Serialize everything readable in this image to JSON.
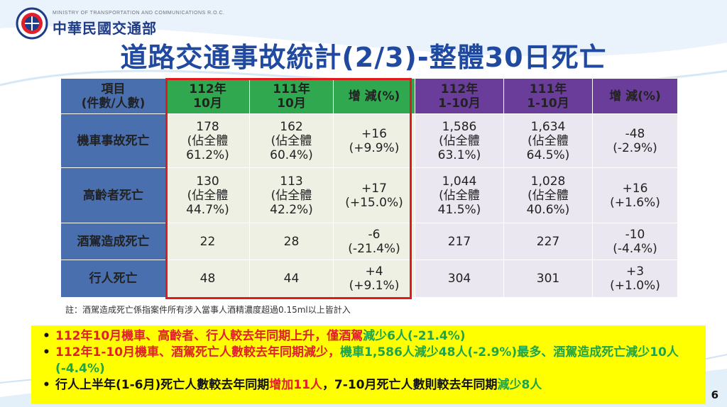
{
  "header": {
    "ministry_en": "MINISTRY OF TRANSPORTATION AND COMMUNICATIONS R.O.C.",
    "ministry_zh": "中華民國交通部",
    "title": "道路交通事故統計(2/3)-整體30日死亡"
  },
  "colors": {
    "title_blue": "#1f4aa0",
    "header_blue": "#4a6fae",
    "header_green": "#2fa84f",
    "header_purple": "#6a3d9a",
    "increase_red": "#e0212b",
    "decrease_green": "#1ea44b",
    "highlight_frame": "#e01b1b",
    "summary_bg": "#ffff00"
  },
  "table": {
    "headers": {
      "item_l1": "項目",
      "item_l2": "(件數/人數)",
      "c1_l1": "112年",
      "c1_l2": "10月",
      "c2_l1": "111年",
      "c2_l2": "10月",
      "c3": "增 減(%)",
      "c4_l1": "112年",
      "c4_l2": "1-10月",
      "c5_l1": "111年",
      "c5_l2": "1-10月",
      "c6": "增 減(%)"
    },
    "rows": [
      {
        "label": "機車事故死亡",
        "c1": {
          "n": "178",
          "l2": "(佔全體",
          "l3": "61.2%)"
        },
        "c2": {
          "n": "162",
          "l2": "(佔全體",
          "l3": "60.4%)"
        },
        "c3": {
          "a": "+16",
          "b": "(+9.9%)"
        },
        "c4": {
          "n": "1,586",
          "l2": "(佔全體",
          "l3": "63.1%)"
        },
        "c5": {
          "n": "1,634",
          "l2": "(佔全體",
          "l3": "64.5%)"
        },
        "c6": {
          "a": "-48",
          "b": "(-2.9%)"
        }
      },
      {
        "label": "高齡者死亡",
        "c1": {
          "n": "130",
          "l2": "(佔全體",
          "l3": "44.7%)"
        },
        "c2": {
          "n": "113",
          "l2": "(佔全體",
          "l3": "42.2%)"
        },
        "c3": {
          "a": "+17",
          "b": "(+15.0%)"
        },
        "c4": {
          "n": "1,044",
          "l2": "(佔全體",
          "l3": "41.5%)"
        },
        "c5": {
          "n": "1,028",
          "l2": "(佔全體",
          "l3": "40.6%)"
        },
        "c6": {
          "a": "+16",
          "b": "(+1.6%)"
        }
      },
      {
        "label": "酒駕造成死亡",
        "c1": "22",
        "c2": "28",
        "c3": {
          "a": "-6",
          "b": "(-21.4%)"
        },
        "c4": "217",
        "c5": "227",
        "c6": {
          "a": "-10",
          "b": "(-4.4%)"
        }
      },
      {
        "label": "行人死亡",
        "c1": "48",
        "c2": "44",
        "c3": {
          "a": "+4",
          "b": "(+9.1%)"
        },
        "c4": "304",
        "c5": "301",
        "c6": {
          "a": "+3",
          "b": "(+1.0%)"
        }
      }
    ]
  },
  "footnote": "註：酒駕造成死亡係指案件所有涉入當事人酒精濃度超過0.15ml以上皆計入",
  "summary": {
    "b1": {
      "p1": "112年10月機車、高齡者、行人較去年同期上升，僅酒駕",
      "p2": "減少6人(-21.4%)"
    },
    "b2": {
      "p1": "112年1-10月機車、酒駕死亡人數較去年同期減少，",
      "p2": "機車1,586人減少48人(-2.9%)最多、酒駕造成死亡減少10人(-4.4%)"
    },
    "b3": {
      "p1": "行人上半年(1-6月)死亡人數較去年同期",
      "p2": "增加11人",
      "p3": "，7-10月死亡人數則較去年同期",
      "p4": "減少8人"
    }
  },
  "page_number": "6"
}
